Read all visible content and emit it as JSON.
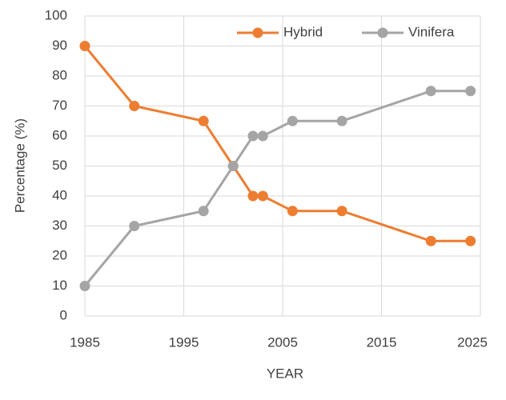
{
  "chart_data": {
    "type": "line",
    "x_label": "YEAR",
    "y_label": "Percentage (%)",
    "x": [
      1985,
      1990,
      1997,
      2000,
      2002,
      2003,
      2006,
      2011,
      2020,
      2024
    ],
    "series": [
      {
        "name": "Hybrid",
        "color": "#ed7d31",
        "values": [
          90,
          70,
          65,
          50,
          40,
          40,
          35,
          35,
          25,
          25
        ]
      },
      {
        "name": "Vinifera",
        "color": "#a5a5a5",
        "values": [
          10,
          30,
          35,
          50,
          60,
          60,
          65,
          65,
          75,
          75
        ]
      }
    ],
    "xlim": [
      1985,
      2025
    ],
    "xticks": [
      1985,
      1995,
      2005,
      2015,
      2025
    ],
    "ylim": [
      0,
      100
    ],
    "yticks": [
      0,
      10,
      20,
      30,
      40,
      50,
      60,
      70,
      80,
      90,
      100
    ],
    "grid": true,
    "legend": "upper right"
  }
}
